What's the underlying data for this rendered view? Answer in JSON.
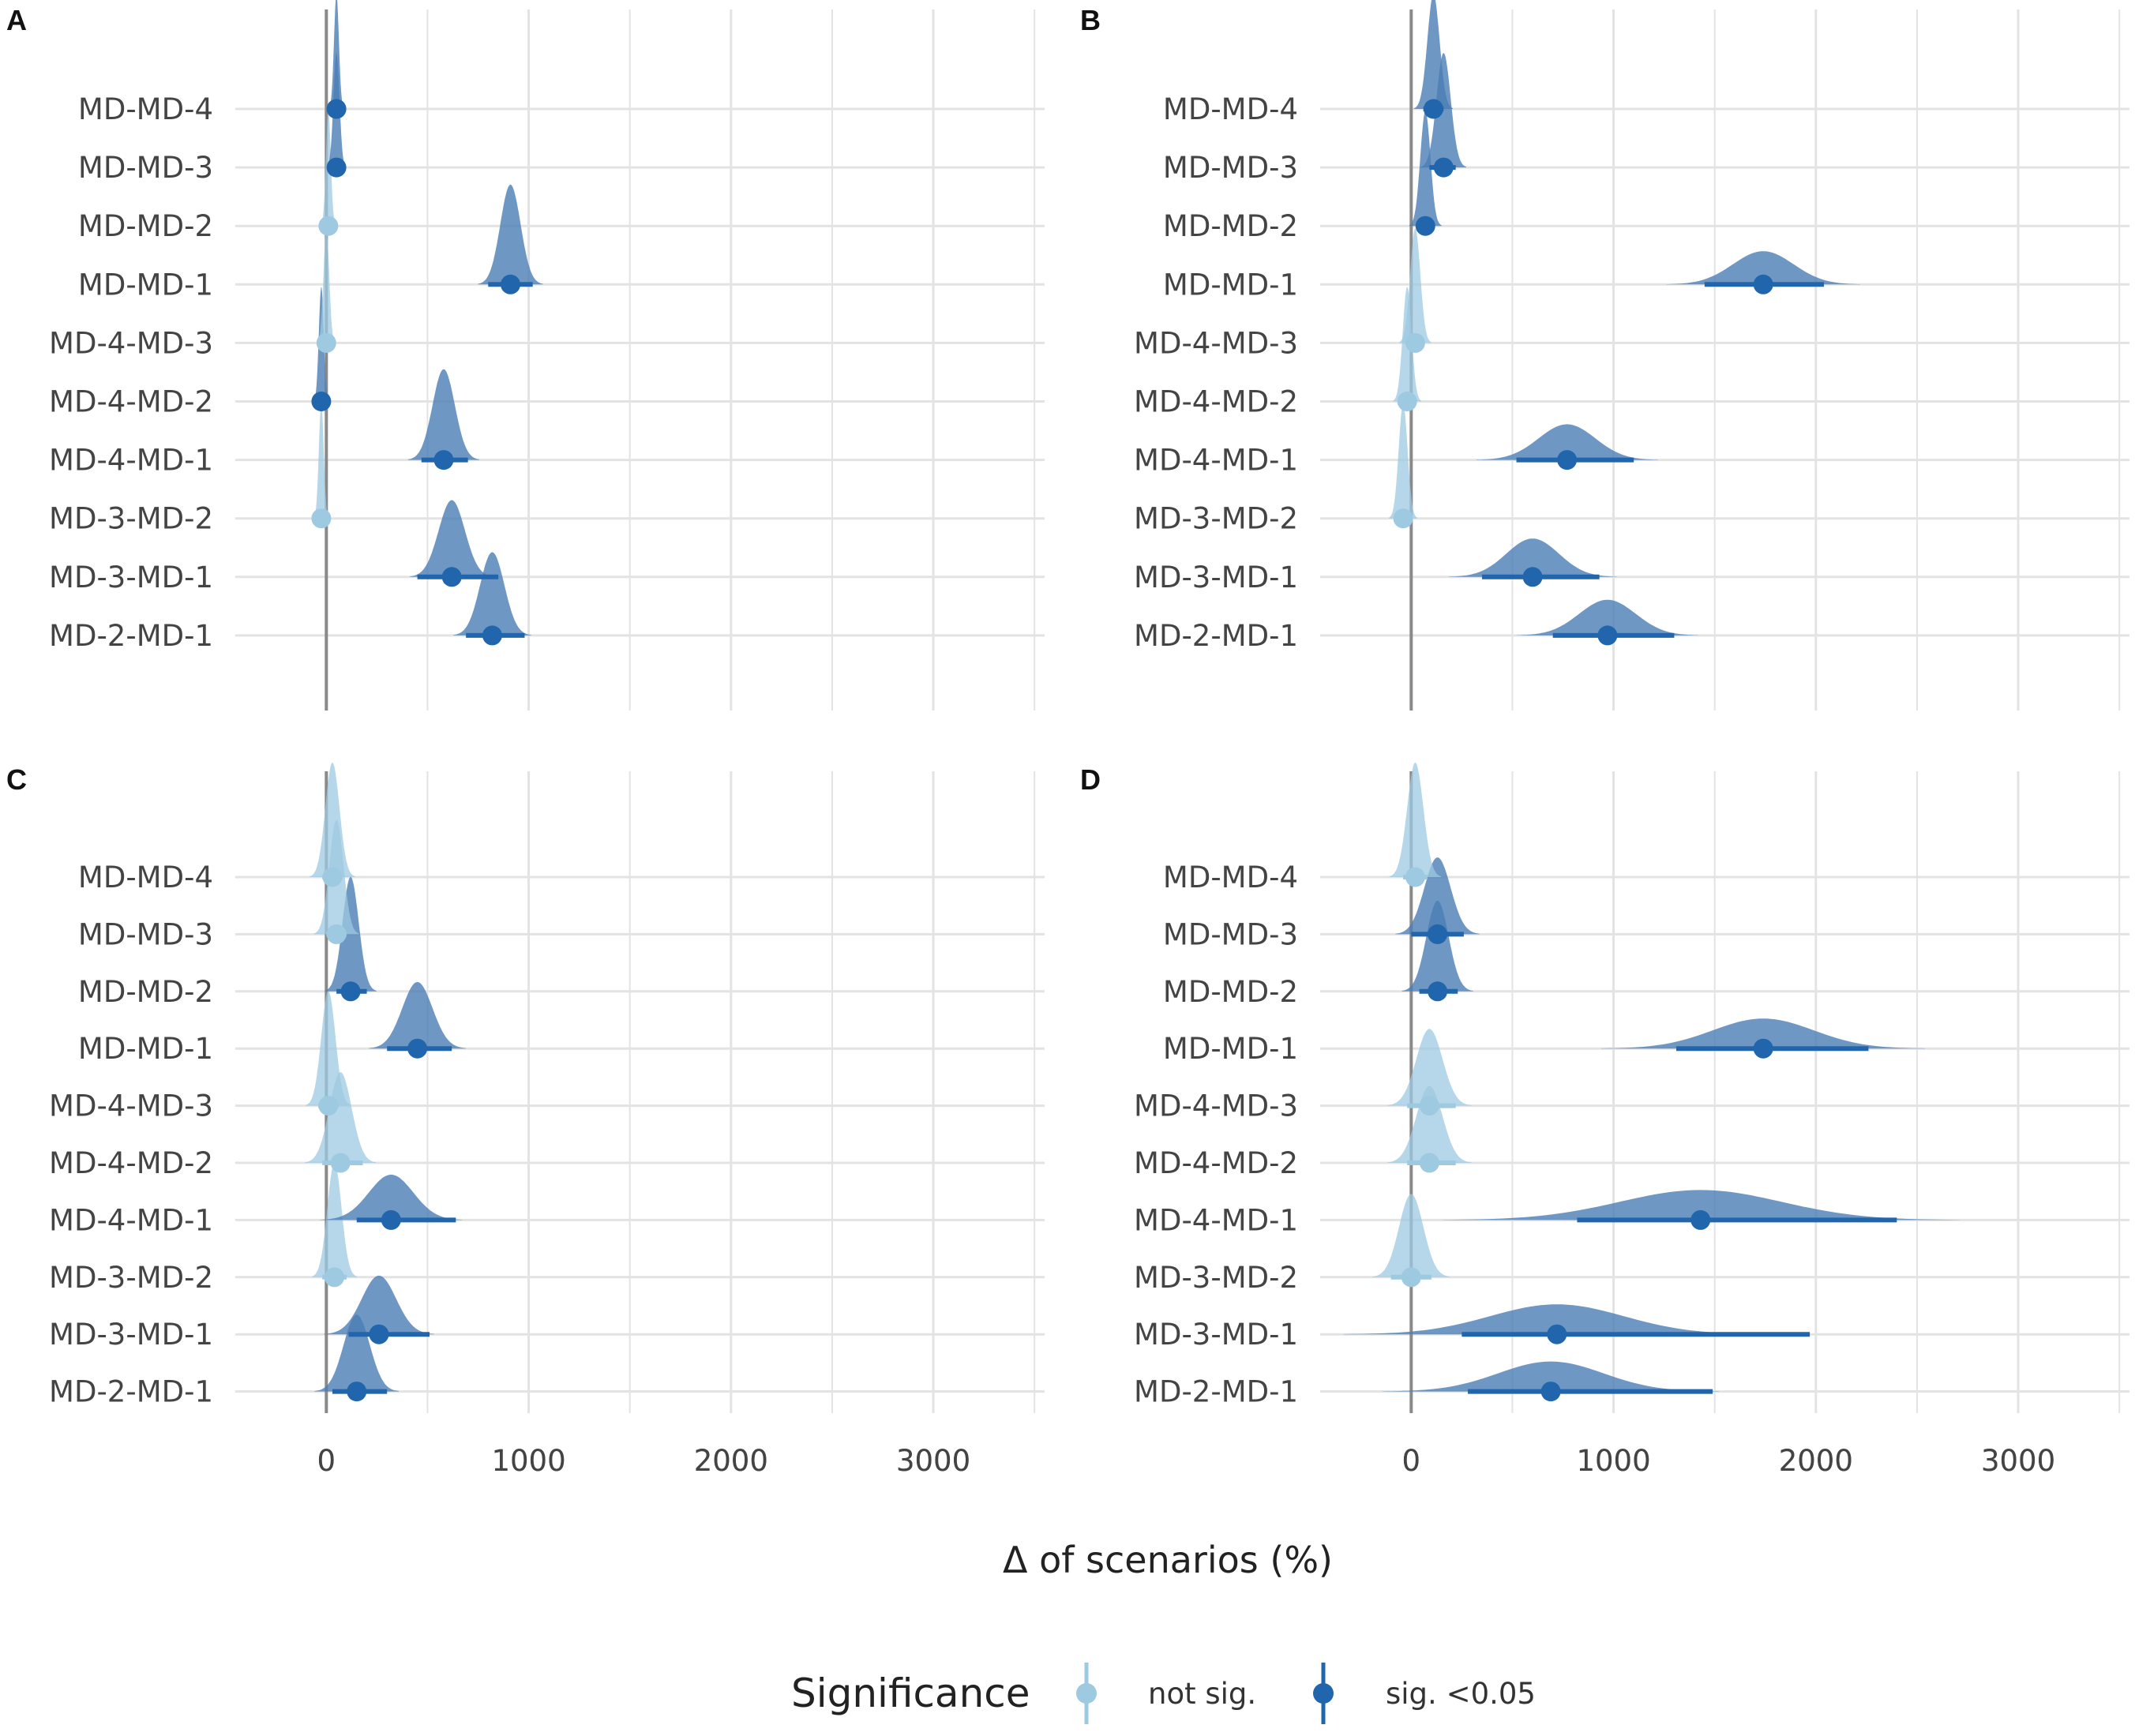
{
  "colors": {
    "not_sig": "#9ecae1",
    "sig": "#2166ac",
    "sig_density": "#4a7db5",
    "grid": "#e3e3e3",
    "zero_line": "#8a8a8a"
  },
  "chart_data": {
    "type": "density-interval",
    "xlabel": "Δ of scenarios (%)",
    "xlim": [
      -450,
      3550
    ],
    "x_ticks": [
      0,
      1000,
      2000,
      3000
    ],
    "categories": [
      "MD-MD-4",
      "MD-MD-3",
      "MD-MD-2",
      "MD-MD-1",
      "MD-4-MD-3",
      "MD-4-MD-2",
      "MD-4-MD-1",
      "MD-3-MD-2",
      "MD-3-MD-1",
      "MD-2-MD-1"
    ],
    "legend": {
      "title": "Significance",
      "items": [
        {
          "key": "not_sig",
          "label": "not sig."
        },
        {
          "key": "sig",
          "label": "sig. <0.05"
        }
      ]
    },
    "panels": [
      {
        "label": "A",
        "rows": [
          {
            "category": "MD-MD-4",
            "mean": 50,
            "lo": 40,
            "hi": 60,
            "sd": 12,
            "sig": true
          },
          {
            "category": "MD-MD-3",
            "mean": 50,
            "lo": 38,
            "hi": 62,
            "sd": 15,
            "sig": true
          },
          {
            "category": "MD-MD-2",
            "mean": 10,
            "lo": 0,
            "hi": 20,
            "sd": 12,
            "sig": false
          },
          {
            "category": "MD-MD-1",
            "mean": 910,
            "lo": 800,
            "hi": 1020,
            "sd": 50,
            "sig": true
          },
          {
            "category": "MD-4-MD-3",
            "mean": 0,
            "lo": -15,
            "hi": 15,
            "sd": 14,
            "sig": false
          },
          {
            "category": "MD-4-MD-2",
            "mean": -25,
            "lo": -35,
            "hi": -15,
            "sd": 12,
            "sig": true
          },
          {
            "category": "MD-4-MD-1",
            "mean": 580,
            "lo": 470,
            "hi": 700,
            "sd": 55,
            "sig": true
          },
          {
            "category": "MD-3-MD-2",
            "mean": -25,
            "lo": -35,
            "hi": -15,
            "sd": 12,
            "sig": false
          },
          {
            "category": "MD-3-MD-1",
            "mean": 620,
            "lo": 450,
            "hi": 850,
            "sd": 65,
            "sig": true
          },
          {
            "category": "MD-2-MD-1",
            "mean": 820,
            "lo": 690,
            "hi": 980,
            "sd": 60,
            "sig": true
          }
        ]
      },
      {
        "label": "B",
        "rows": [
          {
            "category": "MD-MD-4",
            "mean": 110,
            "lo": 60,
            "hi": 160,
            "sd": 30,
            "sig": true
          },
          {
            "category": "MD-MD-3",
            "mean": 160,
            "lo": 90,
            "hi": 220,
            "sd": 35,
            "sig": true
          },
          {
            "category": "MD-MD-2",
            "mean": 70,
            "lo": 30,
            "hi": 110,
            "sd": 25,
            "sig": true
          },
          {
            "category": "MD-MD-1",
            "mean": 1740,
            "lo": 1450,
            "hi": 2040,
            "sd": 150,
            "sig": true
          },
          {
            "category": "MD-4-MD-3",
            "mean": 20,
            "lo": -20,
            "hi": 60,
            "sd": 25,
            "sig": false
          },
          {
            "category": "MD-4-MD-2",
            "mean": -20,
            "lo": -60,
            "hi": 20,
            "sd": 22,
            "sig": false
          },
          {
            "category": "MD-4-MD-1",
            "mean": 770,
            "lo": 520,
            "hi": 1100,
            "sd": 140,
            "sig": true
          },
          {
            "category": "MD-3-MD-2",
            "mean": -40,
            "lo": -80,
            "hi": 0,
            "sd": 22,
            "sig": false
          },
          {
            "category": "MD-3-MD-1",
            "mean": 600,
            "lo": 350,
            "hi": 930,
            "sd": 130,
            "sig": true
          },
          {
            "category": "MD-2-MD-1",
            "mean": 970,
            "lo": 700,
            "hi": 1300,
            "sd": 140,
            "sig": true
          }
        ]
      },
      {
        "label": "C",
        "rows": [
          {
            "category": "MD-MD-4",
            "mean": 30,
            "lo": -20,
            "hi": 80,
            "sd": 35,
            "sig": false
          },
          {
            "category": "MD-MD-3",
            "mean": 50,
            "lo": 0,
            "hi": 100,
            "sd": 35,
            "sig": false
          },
          {
            "category": "MD-MD-2",
            "mean": 120,
            "lo": 50,
            "hi": 200,
            "sd": 40,
            "sig": true
          },
          {
            "category": "MD-MD-1",
            "mean": 450,
            "lo": 300,
            "hi": 620,
            "sd": 75,
            "sig": true
          },
          {
            "category": "MD-4-MD-3",
            "mean": 10,
            "lo": -40,
            "hi": 60,
            "sd": 35,
            "sig": false
          },
          {
            "category": "MD-4-MD-2",
            "mean": 70,
            "lo": -20,
            "hi": 180,
            "sd": 55,
            "sig": false
          },
          {
            "category": "MD-4-MD-1",
            "mean": 320,
            "lo": 150,
            "hi": 640,
            "sd": 110,
            "sig": true
          },
          {
            "category": "MD-3-MD-2",
            "mean": 40,
            "lo": -20,
            "hi": 100,
            "sd": 35,
            "sig": false
          },
          {
            "category": "MD-3-MD-1",
            "mean": 260,
            "lo": 110,
            "hi": 510,
            "sd": 85,
            "sig": true
          },
          {
            "category": "MD-2-MD-1",
            "mean": 150,
            "lo": 30,
            "hi": 300,
            "sd": 65,
            "sig": true
          }
        ]
      },
      {
        "label": "D",
        "rows": [
          {
            "category": "MD-MD-4",
            "mean": 20,
            "lo": -40,
            "hi": 80,
            "sd": 40,
            "sig": false
          },
          {
            "category": "MD-MD-3",
            "mean": 130,
            "lo": 0,
            "hi": 260,
            "sd": 65,
            "sig": true
          },
          {
            "category": "MD-MD-2",
            "mean": 130,
            "lo": 40,
            "hi": 230,
            "sd": 55,
            "sig": true
          },
          {
            "category": "MD-MD-1",
            "mean": 1740,
            "lo": 1310,
            "hi": 2260,
            "sd": 250,
            "sig": true
          },
          {
            "category": "MD-4-MD-3",
            "mean": 90,
            "lo": -20,
            "hi": 220,
            "sd": 65,
            "sig": false
          },
          {
            "category": "MD-4-MD-2",
            "mean": 90,
            "lo": -20,
            "hi": 220,
            "sd": 65,
            "sig": false
          },
          {
            "category": "MD-4-MD-1",
            "mean": 1430,
            "lo": 820,
            "hi": 2400,
            "sd": 400,
            "sig": true
          },
          {
            "category": "MD-3-MD-2",
            "mean": 0,
            "lo": -100,
            "hi": 100,
            "sd": 60,
            "sig": false
          },
          {
            "category": "MD-3-MD-1",
            "mean": 720,
            "lo": 250,
            "hi": 1970,
            "sd": 330,
            "sig": true
          },
          {
            "category": "MD-2-MD-1",
            "mean": 690,
            "lo": 280,
            "hi": 1490,
            "sd": 260,
            "sig": true
          }
        ]
      }
    ]
  }
}
